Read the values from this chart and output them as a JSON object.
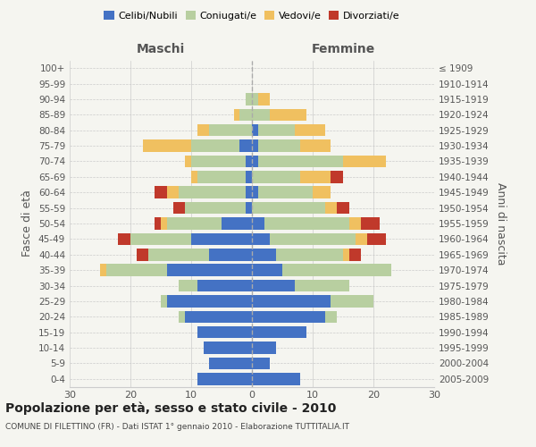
{
  "age_groups": [
    "0-4",
    "5-9",
    "10-14",
    "15-19",
    "20-24",
    "25-29",
    "30-34",
    "35-39",
    "40-44",
    "45-49",
    "50-54",
    "55-59",
    "60-64",
    "65-69",
    "70-74",
    "75-79",
    "80-84",
    "85-89",
    "90-94",
    "95-99",
    "100+"
  ],
  "birth_years": [
    "2005-2009",
    "2000-2004",
    "1995-1999",
    "1990-1994",
    "1985-1989",
    "1980-1984",
    "1975-1979",
    "1970-1974",
    "1965-1969",
    "1960-1964",
    "1955-1959",
    "1950-1954",
    "1945-1949",
    "1940-1944",
    "1935-1939",
    "1930-1934",
    "1925-1929",
    "1920-1924",
    "1915-1919",
    "1910-1914",
    "≤ 1909"
  ],
  "male": {
    "celibi": [
      9,
      7,
      8,
      9,
      11,
      14,
      9,
      14,
      7,
      10,
      5,
      1,
      1,
      1,
      1,
      2,
      0,
      0,
      0,
      0,
      0
    ],
    "coniugati": [
      0,
      0,
      0,
      0,
      1,
      1,
      3,
      10,
      10,
      10,
      9,
      10,
      11,
      8,
      9,
      8,
      7,
      2,
      1,
      0,
      0
    ],
    "vedovi": [
      0,
      0,
      0,
      0,
      0,
      0,
      0,
      1,
      0,
      0,
      1,
      0,
      2,
      1,
      1,
      8,
      2,
      1,
      0,
      0,
      0
    ],
    "divorziati": [
      0,
      0,
      0,
      0,
      0,
      0,
      0,
      0,
      2,
      2,
      1,
      2,
      2,
      0,
      0,
      0,
      0,
      0,
      0,
      0,
      0
    ]
  },
  "female": {
    "nubili": [
      8,
      3,
      4,
      9,
      12,
      13,
      7,
      5,
      4,
      3,
      2,
      0,
      1,
      0,
      1,
      1,
      1,
      0,
      0,
      0,
      0
    ],
    "coniugate": [
      0,
      0,
      0,
      0,
      2,
      7,
      9,
      18,
      11,
      14,
      14,
      12,
      9,
      8,
      14,
      7,
      6,
      3,
      1,
      0,
      0
    ],
    "vedove": [
      0,
      0,
      0,
      0,
      0,
      0,
      0,
      0,
      1,
      2,
      2,
      2,
      3,
      5,
      7,
      5,
      5,
      6,
      2,
      0,
      0
    ],
    "divorziate": [
      0,
      0,
      0,
      0,
      0,
      0,
      0,
      0,
      2,
      3,
      3,
      2,
      0,
      2,
      0,
      0,
      0,
      0,
      0,
      0,
      0
    ]
  },
  "colors": {
    "celibi": "#4472c4",
    "coniugati": "#b8cfa0",
    "vedovi": "#f0c060",
    "divorziati": "#c0392b"
  },
  "xlim": 30,
  "title": "Popolazione per età, sesso e stato civile - 2010",
  "subtitle": "COMUNE DI FILETTINO (FR) - Dati ISTAT 1° gennaio 2010 - Elaborazione TUTTITALIA.IT",
  "ylabel_left": "Fasce di età",
  "ylabel_right": "Anni di nascita",
  "xlabel_left": "Maschi",
  "xlabel_right": "Femmine",
  "bg_color": "#f5f5f0",
  "grid_color": "#cccccc"
}
